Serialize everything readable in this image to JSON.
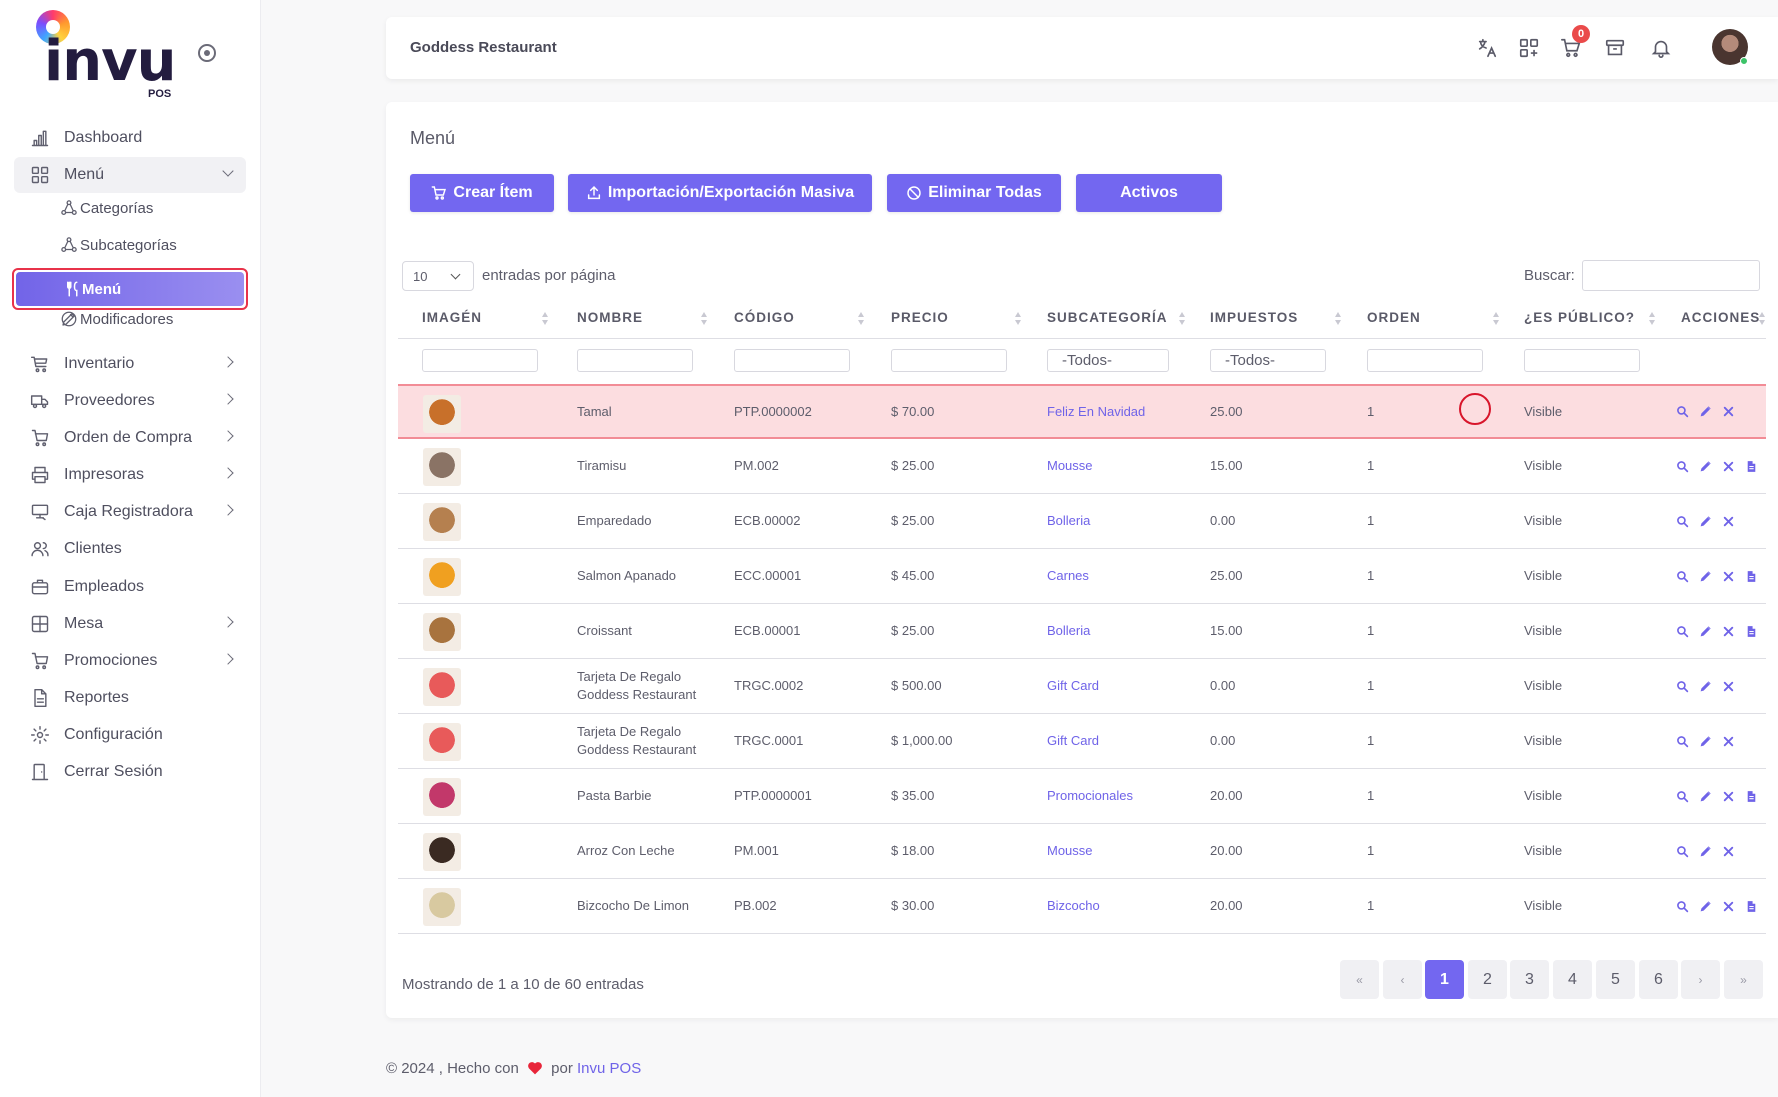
{
  "brand": {
    "logo_text": "invu",
    "logo_sub": "POS"
  },
  "sidebar": {
    "items": [
      {
        "label": "Dashboard",
        "icon": "chart-bar-icon",
        "chevron": false
      },
      {
        "label": "Menú",
        "icon": "grid-icon",
        "chevron": true,
        "open": true
      },
      {
        "label": "Inventario",
        "icon": "cart-flat-icon",
        "chevron": true
      },
      {
        "label": "Proveedores",
        "icon": "truck-icon",
        "chevron": true
      },
      {
        "label": "Orden de Compra",
        "icon": "shopping-cart-icon",
        "chevron": true
      },
      {
        "label": "Impresoras",
        "icon": "printer-icon",
        "chevron": true
      },
      {
        "label": "Caja Registradora",
        "icon": "register-icon",
        "chevron": true
      },
      {
        "label": "Clientes",
        "icon": "users-icon",
        "chevron": false
      },
      {
        "label": "Empleados",
        "icon": "briefcase-icon",
        "chevron": false
      },
      {
        "label": "Mesa",
        "icon": "table-grid-icon",
        "chevron": true
      },
      {
        "label": "Promociones",
        "icon": "cart-promo-icon",
        "chevron": true
      },
      {
        "label": "Reportes",
        "icon": "file-icon",
        "chevron": false
      },
      {
        "label": "Configuración",
        "icon": "gear-icon",
        "chevron": false
      },
      {
        "label": "Cerrar Sesión",
        "icon": "door-icon",
        "chevron": false
      }
    ],
    "submenu": [
      {
        "label": "Categorías",
        "icon": "hierarchy-icon"
      },
      {
        "label": "Subcategorías",
        "icon": "hierarchy-icon"
      },
      {
        "label": "Menú",
        "icon": "utensils-icon",
        "active": true
      },
      {
        "label": "Modificadores",
        "icon": "edit-pen-icon"
      }
    ]
  },
  "header": {
    "title": "Goddess Restaurant",
    "cart_count": "0",
    "icons": [
      "translate-icon",
      "apps-add-icon",
      "cart-icon",
      "archive-icon",
      "bell-icon",
      "avatar"
    ]
  },
  "main": {
    "title": "Menú",
    "buttons": {
      "create": "Crear Ítem",
      "import": "Importación/Exportación Masiva",
      "delete_all": "Eliminar Todas",
      "active": "Activos"
    },
    "page_length": "10",
    "page_length_label": "entradas por página",
    "search_label": "Buscar:",
    "search_value": "",
    "columns": [
      "IMAGÉN",
      "NOMBRE",
      "CÓDIGO",
      "PRECIO",
      "SUBCATEGORÍA",
      "IMPUESTOS",
      "ORDEN",
      "¿ES PÚBLICO?",
      "ACCIONES"
    ],
    "filters": {
      "subcategory": "-Todos-",
      "taxes": "-Todos-"
    },
    "rows": [
      {
        "name": "Tamal",
        "code": "PTP.0000002",
        "price": "$ 70.00",
        "subcategory": "Feliz En Navidad",
        "taxes": "25.00",
        "order": "1",
        "public": "Visible",
        "has_doc": false,
        "highlight": true,
        "thumb": "#c8702a"
      },
      {
        "name": "Tiramisu",
        "code": "PM.002",
        "price": "$ 25.00",
        "subcategory": "Mousse",
        "taxes": "15.00",
        "order": "1",
        "public": "Visible",
        "has_doc": true,
        "thumb": "#8a7365"
      },
      {
        "name": "Emparedado",
        "code": "ECB.00002",
        "price": "$ 25.00",
        "subcategory": "Bolleria",
        "taxes": "0.00",
        "order": "1",
        "public": "Visible",
        "has_doc": false,
        "thumb": "#b5804f"
      },
      {
        "name": "Salmon Apanado",
        "code": "ECC.00001",
        "price": "$ 45.00",
        "subcategory": "Carnes",
        "taxes": "25.00",
        "order": "1",
        "public": "Visible",
        "has_doc": true,
        "thumb": "#f0a020"
      },
      {
        "name": "Croissant",
        "code": "ECB.00001",
        "price": "$ 25.00",
        "subcategory": "Bolleria",
        "taxes": "15.00",
        "order": "1",
        "public": "Visible",
        "has_doc": true,
        "thumb": "#a8733e"
      },
      {
        "name": "Tarjeta De Regalo Goddess Restaurant",
        "code": "TRGC.0002",
        "price": "$ 500.00",
        "subcategory": "Gift Card",
        "taxes": "0.00",
        "order": "1",
        "public": "Visible",
        "has_doc": false,
        "thumb": "#e85a5a"
      },
      {
        "name": "Tarjeta De Regalo Goddess Restaurant",
        "code": "TRGC.0001",
        "price": "$ 1,000.00",
        "subcategory": "Gift Card",
        "taxes": "0.00",
        "order": "1",
        "public": "Visible",
        "has_doc": false,
        "thumb": "#e85a5a"
      },
      {
        "name": "Pasta Barbie",
        "code": "PTP.0000001",
        "price": "$ 35.00",
        "subcategory": "Promocionales",
        "taxes": "20.00",
        "order": "1",
        "public": "Visible",
        "has_doc": true,
        "thumb": "#c2386a"
      },
      {
        "name": "Arroz Con Leche",
        "code": "PM.001",
        "price": "$ 18.00",
        "subcategory": "Mousse",
        "taxes": "20.00",
        "order": "1",
        "public": "Visible",
        "has_doc": false,
        "thumb": "#3a2a22"
      },
      {
        "name": "Bizcocho De Limon",
        "code": "PB.002",
        "price": "$ 30.00",
        "subcategory": "Bizcocho",
        "taxes": "20.00",
        "order": "1",
        "public": "Visible",
        "has_doc": true,
        "thumb": "#d8c9a0"
      }
    ],
    "info": "Mostrando de 1 a 10 de 60 entradas",
    "pagination": [
      "«",
      "‹",
      "1",
      "2",
      "3",
      "4",
      "5",
      "6",
      "›",
      "»"
    ],
    "current_page": "1"
  },
  "footer": {
    "text": "© 2024 , Hecho con",
    "by": "por",
    "brand": "Invu POS"
  },
  "colors": {
    "accent": "#7367f0",
    "highlight_row": "#fcdde0",
    "badge": "#ea4a4a"
  }
}
